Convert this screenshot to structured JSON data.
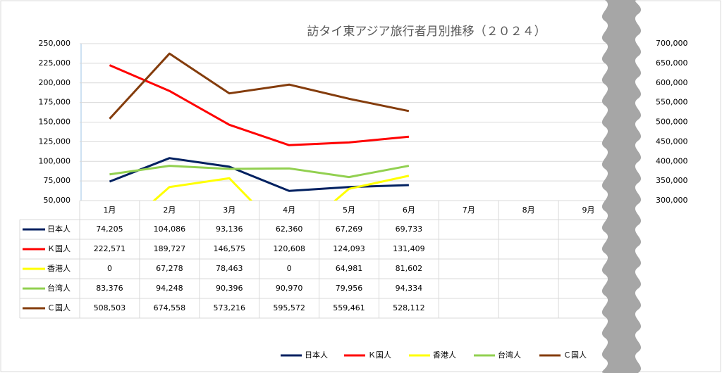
{
  "chart_data": {
    "type": "line",
    "title": "訪タイ東アジア旅行者月別推移（２０２４）",
    "categories": [
      "1月",
      "2月",
      "3月",
      "4月",
      "5月",
      "6月",
      "7月",
      "8月",
      "9月"
    ],
    "series": [
      {
        "name": "日本人",
        "color": "#002060",
        "values": [
          74205,
          104086,
          93136,
          62360,
          67269,
          69733,
          null,
          null,
          null
        ],
        "value_labels": [
          "74,205",
          "104,086",
          "93,136",
          "62,360",
          "67,269",
          "69,733",
          null,
          null,
          null
        ]
      },
      {
        "name": "Ｋ国人",
        "color": "#ff0000",
        "values": [
          222571,
          189727,
          146575,
          120608,
          124093,
          131409,
          null,
          null,
          null
        ],
        "value_labels": [
          "222,571",
          "189,727",
          "146,575",
          "120,608",
          "124,093",
          "131,409",
          null,
          null,
          null
        ]
      },
      {
        "name": "香港人",
        "color": "#ffff00",
        "values": [
          0,
          67278,
          78463,
          0,
          64981,
          81602,
          null,
          null,
          null
        ],
        "value_labels": [
          "0",
          "67,278",
          "78,463",
          "0",
          "64,981",
          "81,602",
          null,
          null,
          null
        ]
      },
      {
        "name": "台湾人",
        "color": "#92d050",
        "values": [
          83376,
          94248,
          90396,
          90970,
          79956,
          94334,
          null,
          null,
          null
        ],
        "value_labels": [
          "83,376",
          "94,248",
          "90,396",
          "90,970",
          "79,956",
          "94,334",
          null,
          null,
          null
        ]
      },
      {
        "name": "Ｃ国人",
        "color": "#843c0c",
        "axis": "y2",
        "values": [
          508503,
          674558,
          573216,
          595572,
          559461,
          528112,
          null,
          null,
          null
        ],
        "value_labels": [
          "508,503",
          "674,558",
          "573,216",
          "595,572",
          "559,461",
          "528,112",
          null,
          null,
          null
        ]
      }
    ],
    "ylim": [
      50000,
      250000
    ],
    "yticks": [
      {
        "value": 50000,
        "label": "50,000"
      },
      {
        "value": 75000,
        "label": "75,000"
      },
      {
        "value": 100000,
        "label": "100,000"
      },
      {
        "value": 125000,
        "label": "125,000"
      },
      {
        "value": 150000,
        "label": "150,000"
      },
      {
        "value": 175000,
        "label": "175,000"
      },
      {
        "value": 200000,
        "label": "200,000"
      },
      {
        "value": 225000,
        "label": "225,000"
      },
      {
        "value": 250000,
        "label": "250,000"
      }
    ],
    "y2lim": [
      300000,
      700000
    ],
    "y2ticks": [
      {
        "value": 300000,
        "label": "300,000"
      },
      {
        "value": 350000,
        "label": "350,000"
      },
      {
        "value": 400000,
        "label": "400,000"
      },
      {
        "value": 450000,
        "label": "450,000"
      },
      {
        "value": 500000,
        "label": "500,000"
      },
      {
        "value": 550000,
        "label": "550,000"
      },
      {
        "value": 600000,
        "label": "600,000"
      },
      {
        "value": 650000,
        "label": "650,000"
      },
      {
        "value": 700000,
        "label": "700,000"
      }
    ],
    "grid": true,
    "legend": "bottom"
  }
}
